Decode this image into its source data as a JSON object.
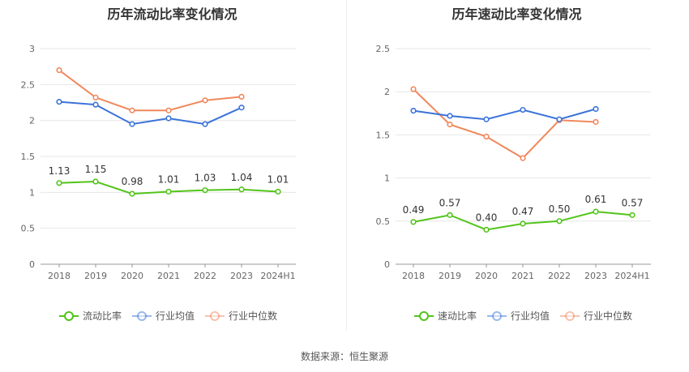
{
  "chart_data": [
    {
      "type": "line",
      "title": "历年流动比率变化情况",
      "categories": [
        "2018",
        "2019",
        "2020",
        "2021",
        "2022",
        "2023",
        "2024H1"
      ],
      "ylim": [
        0,
        3
      ],
      "yticks": [
        "0",
        "0.5",
        "1",
        "1.5",
        "2",
        "2.5",
        "3"
      ],
      "grid": true,
      "legend_position": "bottom",
      "series": [
        {
          "name": "流动比率",
          "color": "#52c41a",
          "values": [
            1.13,
            1.15,
            0.98,
            1.01,
            1.03,
            1.04,
            1.01
          ],
          "labels": [
            "1.13",
            "1.15",
            "0.98",
            "1.01",
            "1.03",
            "1.04",
            "1.01"
          ]
        },
        {
          "name": "行业均值",
          "color": "#3b73d9",
          "values": [
            2.26,
            2.22,
            1.95,
            2.03,
            1.95,
            2.18,
            null
          ]
        },
        {
          "name": "行业中位数",
          "color": "#f0885d",
          "values": [
            2.7,
            2.32,
            2.14,
            2.14,
            2.28,
            2.33,
            null
          ]
        }
      ]
    },
    {
      "type": "line",
      "title": "历年速动比率变化情况",
      "categories": [
        "2018",
        "2019",
        "2020",
        "2021",
        "2022",
        "2023",
        "2024H1"
      ],
      "ylim": [
        0,
        2.5
      ],
      "yticks": [
        "0",
        "0.5",
        "1",
        "1.5",
        "2",
        "2.5"
      ],
      "grid": true,
      "legend_position": "bottom",
      "series": [
        {
          "name": "速动比率",
          "color": "#52c41a",
          "values": [
            0.49,
            0.57,
            0.4,
            0.47,
            0.5,
            0.61,
            0.57
          ],
          "labels": [
            "0.49",
            "0.57",
            "0.40",
            "0.47",
            "0.50",
            "0.61",
            "0.57"
          ]
        },
        {
          "name": "行业均值",
          "color": "#3b73d9",
          "values": [
            1.78,
            1.72,
            1.68,
            1.79,
            1.68,
            1.8,
            null
          ]
        },
        {
          "name": "行业中位数",
          "color": "#f0885d",
          "values": [
            2.03,
            1.62,
            1.48,
            1.23,
            1.67,
            1.65,
            null
          ]
        }
      ]
    }
  ],
  "footer": "数据来源：恒生聚源"
}
